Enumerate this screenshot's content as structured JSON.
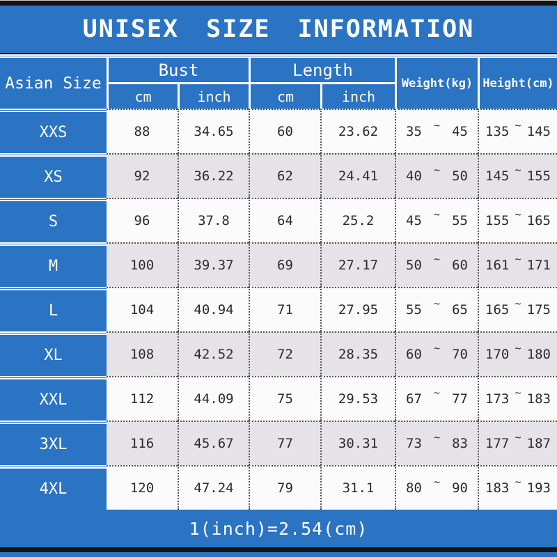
{
  "title": "UNISEX SIZE INFORMATION",
  "header": {
    "asian_size": "Asian Size",
    "bust": "Bust",
    "length": "Length",
    "unit_cm": "cm",
    "unit_inch": "inch",
    "weight": "Weight(kg)",
    "height": "Height(cm)"
  },
  "symbols": {
    "tilde": "~"
  },
  "rows": [
    {
      "size": "XXS",
      "bust_cm": "88",
      "bust_inch": "34.65",
      "length_cm": "60",
      "length_inch": "23.62",
      "weight_min": "35",
      "weight_max": "45",
      "height_min": "135",
      "height_max": "145"
    },
    {
      "size": "XS",
      "bust_cm": "92",
      "bust_inch": "36.22",
      "length_cm": "62",
      "length_inch": "24.41",
      "weight_min": "40",
      "weight_max": "50",
      "height_min": "145",
      "height_max": "155"
    },
    {
      "size": "S",
      "bust_cm": "96",
      "bust_inch": "37.8",
      "length_cm": "64",
      "length_inch": "25.2",
      "weight_min": "45",
      "weight_max": "55",
      "height_min": "155",
      "height_max": "165"
    },
    {
      "size": "M",
      "bust_cm": "100",
      "bust_inch": "39.37",
      "length_cm": "69",
      "length_inch": "27.17",
      "weight_min": "50",
      "weight_max": "60",
      "height_min": "161",
      "height_max": "171"
    },
    {
      "size": "L",
      "bust_cm": "104",
      "bust_inch": "40.94",
      "length_cm": "71",
      "length_inch": "27.95",
      "weight_min": "55",
      "weight_max": "65",
      "height_min": "165",
      "height_max": "175"
    },
    {
      "size": "XL",
      "bust_cm": "108",
      "bust_inch": "42.52",
      "length_cm": "72",
      "length_inch": "28.35",
      "weight_min": "60",
      "weight_max": "70",
      "height_min": "170",
      "height_max": "180"
    },
    {
      "size": "XXL",
      "bust_cm": "112",
      "bust_inch": "44.09",
      "length_cm": "75",
      "length_inch": "29.53",
      "weight_min": "67",
      "weight_max": "77",
      "height_min": "173",
      "height_max": "183"
    },
    {
      "size": "3XL",
      "bust_cm": "116",
      "bust_inch": "45.67",
      "length_cm": "77",
      "length_inch": "30.31",
      "weight_min": "73",
      "weight_max": "83",
      "height_min": "177",
      "height_max": "187"
    },
    {
      "size": "4XL",
      "bust_cm": "120",
      "bust_inch": "47.24",
      "length_cm": "79",
      "length_inch": "31.1",
      "weight_min": "80",
      "weight_max": "90",
      "height_min": "183",
      "height_max": "193"
    }
  ],
  "footer": {
    "note": "1(inch)=2.54(cm)"
  },
  "colors": {
    "blue": "#2b73c3",
    "row_gray": "#e5e3e7",
    "row_white": "#fbfbfc",
    "bar_black": "#141414"
  }
}
